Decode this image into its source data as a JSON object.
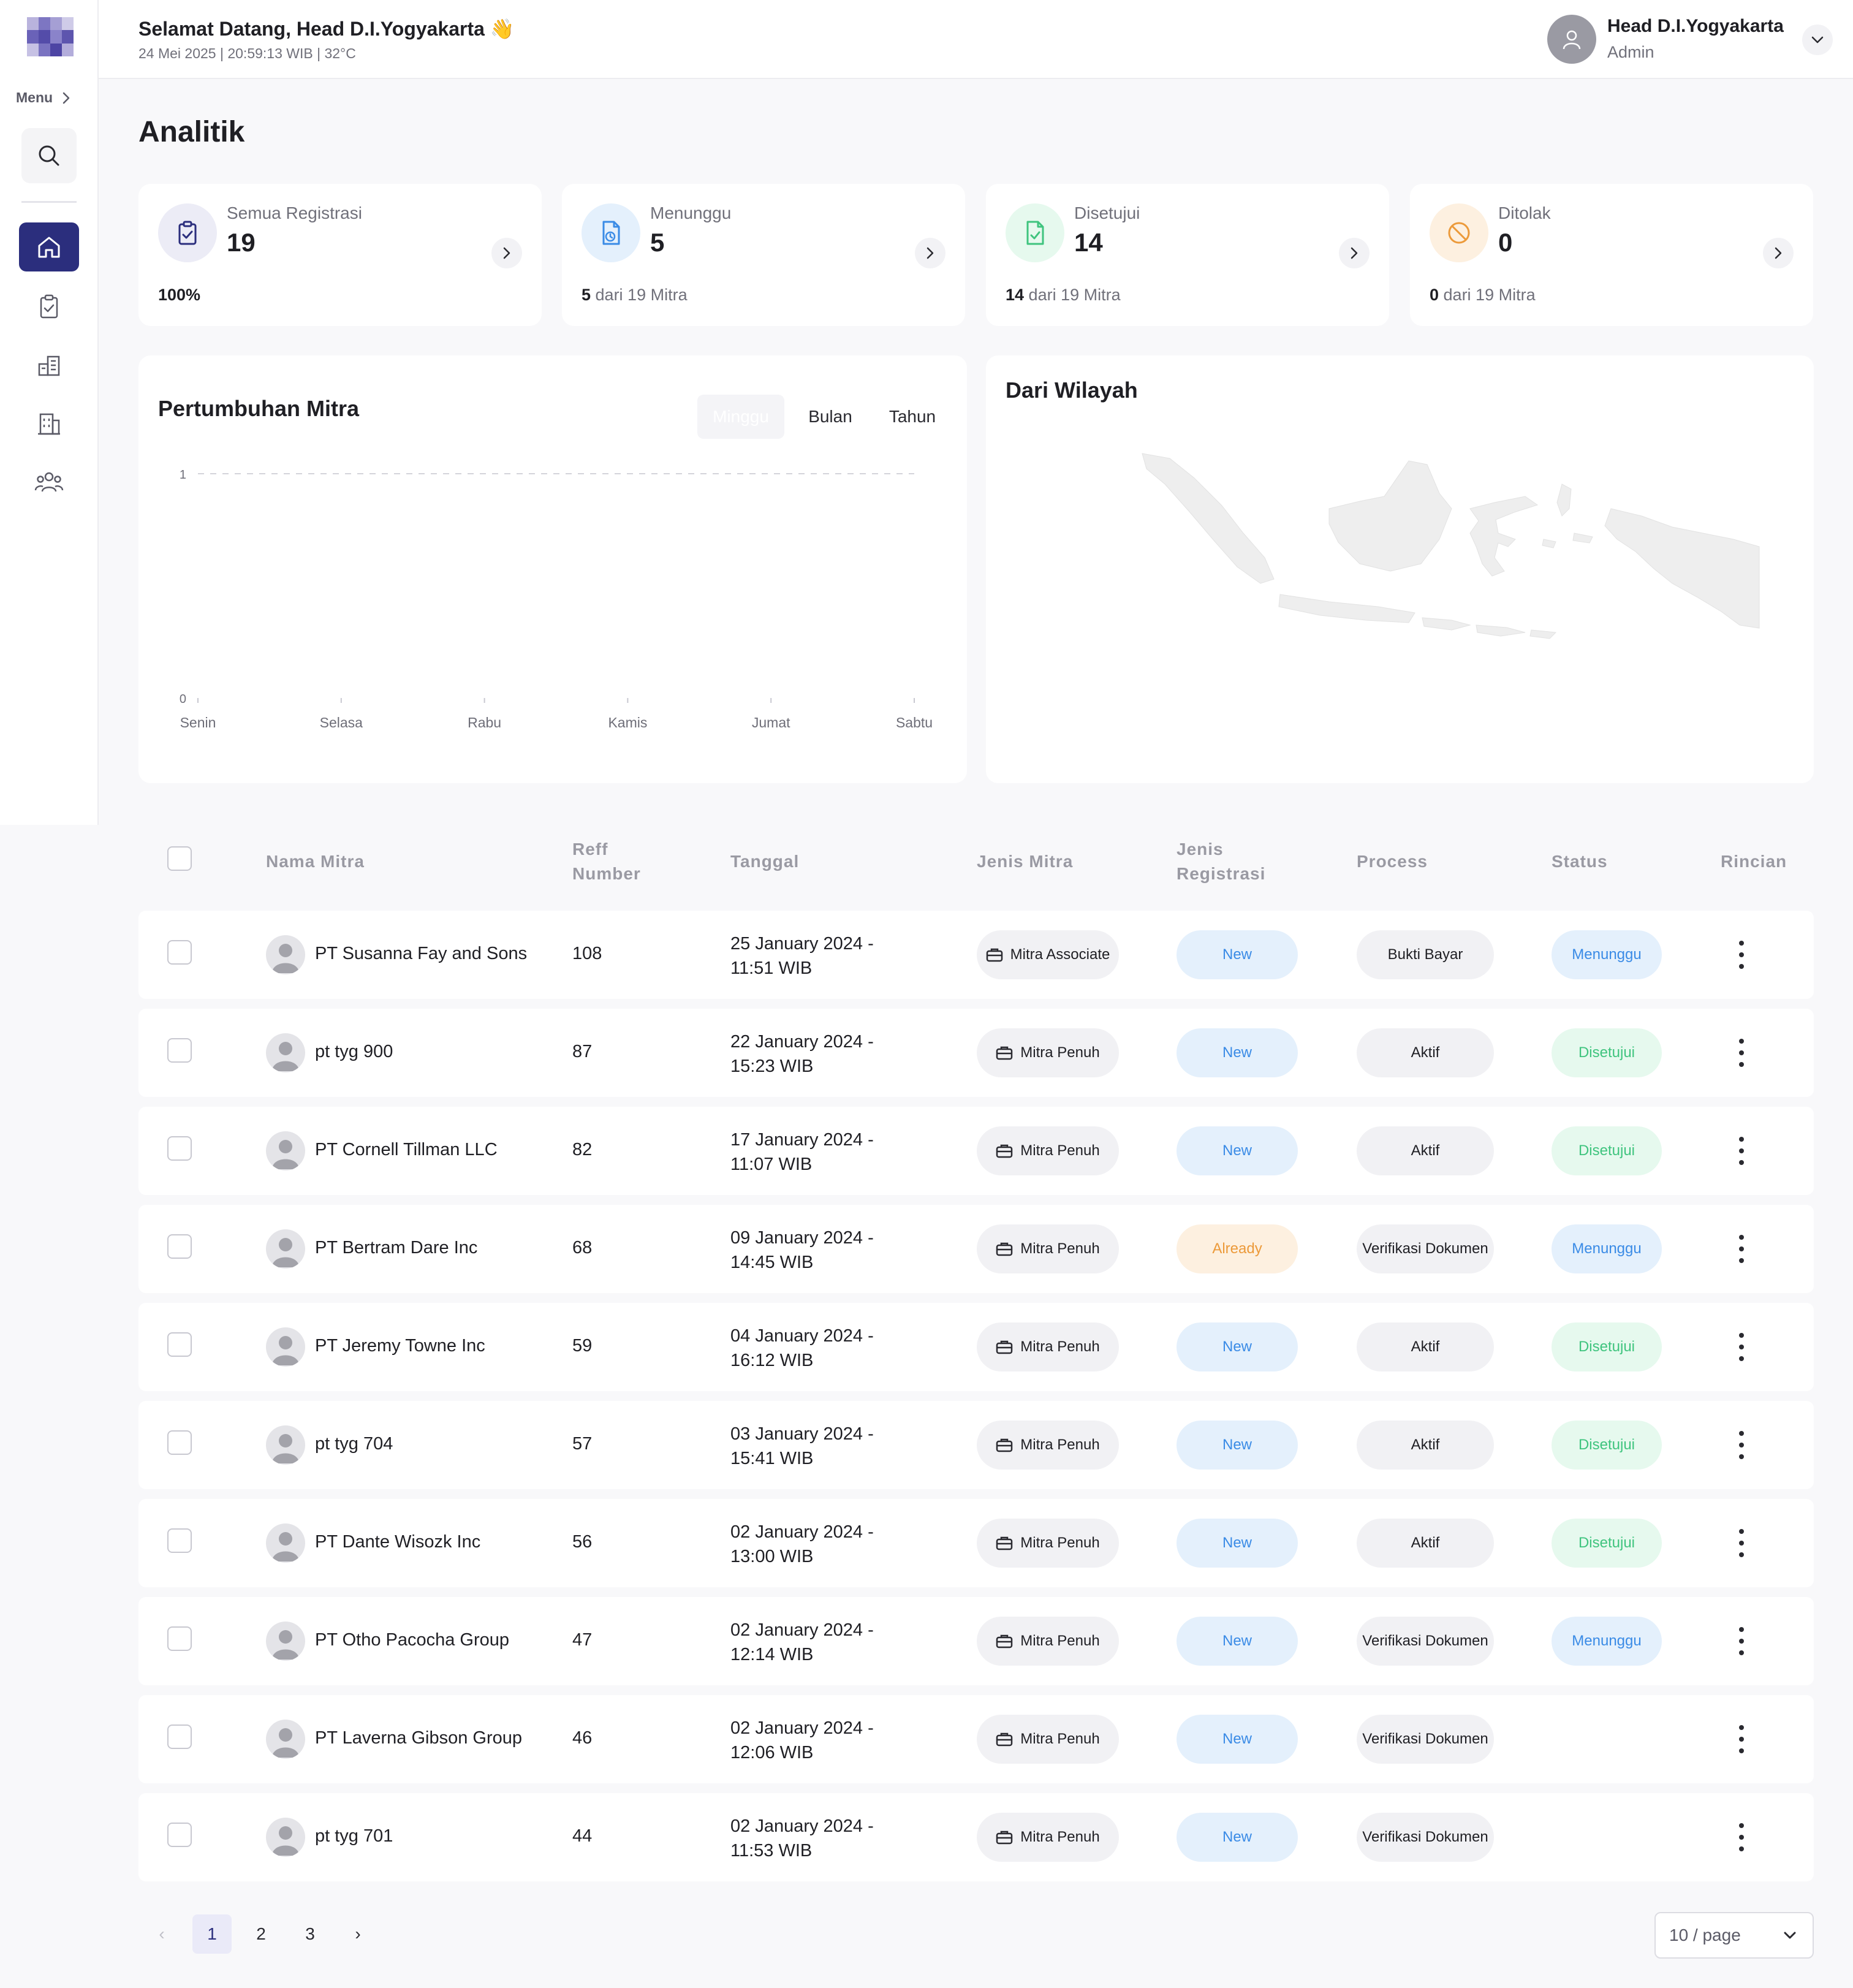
{
  "colors": {
    "primary": "#2b2e7d",
    "blue_badge": "#3a8be6",
    "green_badge": "#3fc47e",
    "orange_badge": "#ec9a3a",
    "chart_line_start": "#8e44ad",
    "chart_line_end": "#e74c3c"
  },
  "sidebar": {
    "menu_label": "Menu",
    "menu_icon": "chevron-right-icon",
    "search_icon": "search-icon",
    "nav": [
      {
        "icon": "home-icon",
        "active": true
      },
      {
        "icon": "clipboard-check-icon",
        "active": false
      },
      {
        "icon": "buildings-icon",
        "active": false
      },
      {
        "icon": "office-building-icon",
        "active": false
      },
      {
        "icon": "users-group-icon",
        "active": false
      }
    ]
  },
  "header": {
    "greeting": "Selamat Datang, Head D.I.Yogyakarta 👋",
    "subinfo": "24 Mei 2025 | 20:59:13 WIB | 32°C",
    "user_name": "Head D.I.Yogyakarta",
    "user_role": "Admin"
  },
  "page_title": "Analitik",
  "stats": [
    {
      "label": "Semua Registrasi",
      "value": "19",
      "foot_strong": "100%",
      "foot_rest": "",
      "icon": "clipboard-check-icon",
      "color": "#2b2e7d",
      "bg": "#ececf6"
    },
    {
      "label": "Menunggu",
      "value": "5",
      "foot_strong": "5",
      "foot_rest": " dari 19 Mitra",
      "icon": "document-clock-icon",
      "color": "#3a8be6",
      "bg": "#e4f0fc"
    },
    {
      "label": "Disetujui",
      "value": "14",
      "foot_strong": "14",
      "foot_rest": " dari 19 Mitra",
      "icon": "document-check-icon",
      "color": "#3fc47e",
      "bg": "#e6f9ee"
    },
    {
      "label": "Ditolak",
      "value": "0",
      "foot_strong": "0",
      "foot_rest": " dari 19 Mitra",
      "icon": "ban-icon",
      "color": "#ec9a3a",
      "bg": "#fdf0e0"
    }
  ],
  "growth": {
    "title": "Pertumbuhan Mitra",
    "tabs": [
      "Minggu",
      "Bulan",
      "Tahun"
    ],
    "active_tab": 0
  },
  "chart_data": {
    "type": "line",
    "title": "Pertumbuhan Mitra",
    "categories": [
      "Senin",
      "Selasa",
      "Rabu",
      "Kamis",
      "Jumat",
      "Sabtu"
    ],
    "series": [
      {
        "values": [
          0,
          0,
          0,
          0,
          0,
          0
        ]
      }
    ],
    "yticks": [
      "0",
      "1"
    ],
    "ylim": [
      0,
      1
    ],
    "grid": "dashed line at y=1",
    "legend": "none"
  },
  "region": {
    "title": "Dari Wilayah",
    "map": "indonesia-map"
  },
  "table": {
    "headers": {
      "name": "Nama Mitra",
      "ref": [
        "Reff",
        "Number"
      ],
      "date": "Tanggal",
      "jenis_mitra": "Jenis Mitra",
      "jenis_reg": [
        "Jenis",
        "Registrasi"
      ],
      "process": "Process",
      "status": "Status",
      "detail": "Rincian"
    },
    "rows": [
      {
        "name": "PT Susanna Fay and Sons",
        "ref": "108",
        "date1": "25 January 2024 -",
        "date2": "11:51 WIB",
        "jenis": "Mitra Associate",
        "reg": "New",
        "process": "Bukti Bayar",
        "status": "Menunggu"
      },
      {
        "name": "pt tyg 900",
        "ref": "87",
        "date1": "22 January 2024 -",
        "date2": "15:23 WIB",
        "jenis": "Mitra Penuh",
        "reg": "New",
        "process": "Aktif",
        "status": "Disetujui"
      },
      {
        "name": "PT Cornell Tillman LLC",
        "ref": "82",
        "date1": "17 January 2024 -",
        "date2": "11:07 WIB",
        "jenis": "Mitra Penuh",
        "reg": "New",
        "process": "Aktif",
        "status": "Disetujui"
      },
      {
        "name": "PT Bertram Dare Inc",
        "ref": "68",
        "date1": "09 January 2024 -",
        "date2": "14:45 WIB",
        "jenis": "Mitra Penuh",
        "reg": "Already",
        "process": "Verifikasi Dokumen",
        "status": "Menunggu"
      },
      {
        "name": "PT Jeremy Towne Inc",
        "ref": "59",
        "date1": "04 January 2024 -",
        "date2": "16:12 WIB",
        "jenis": "Mitra Penuh",
        "reg": "New",
        "process": "Aktif",
        "status": "Disetujui"
      },
      {
        "name": "pt tyg 704",
        "ref": "57",
        "date1": "03 January 2024 -",
        "date2": "15:41 WIB",
        "jenis": "Mitra Penuh",
        "reg": "New",
        "process": "Aktif",
        "status": "Disetujui"
      },
      {
        "name": "PT Dante Wisozk Inc",
        "ref": "56",
        "date1": "02 January 2024 -",
        "date2": "13:00 WIB",
        "jenis": "Mitra Penuh",
        "reg": "New",
        "process": "Aktif",
        "status": "Disetujui"
      },
      {
        "name": "PT Otho Pacocha Group",
        "ref": "47",
        "date1": "02 January 2024 -",
        "date2": "12:14 WIB",
        "jenis": "Mitra Penuh",
        "reg": "New",
        "process": "Verifikasi Dokumen",
        "status": "Menunggu"
      },
      {
        "name": "PT Laverna Gibson Group",
        "ref": "46",
        "date1": "02 January 2024 -",
        "date2": "12:06 WIB",
        "jenis": "Mitra Penuh",
        "reg": "New",
        "process": "Verifikasi Dokumen",
        "status": ""
      },
      {
        "name": "pt tyg 701",
        "ref": "44",
        "date1": "02 January 2024 -",
        "date2": "11:53 WIB",
        "jenis": "Mitra Penuh",
        "reg": "New",
        "process": "Verifikasi Dokumen",
        "status": ""
      }
    ]
  },
  "pagination": {
    "prev": "‹",
    "pages": [
      "1",
      "2",
      "3"
    ],
    "current": "1",
    "next": "›",
    "page_size": "10 / page"
  }
}
